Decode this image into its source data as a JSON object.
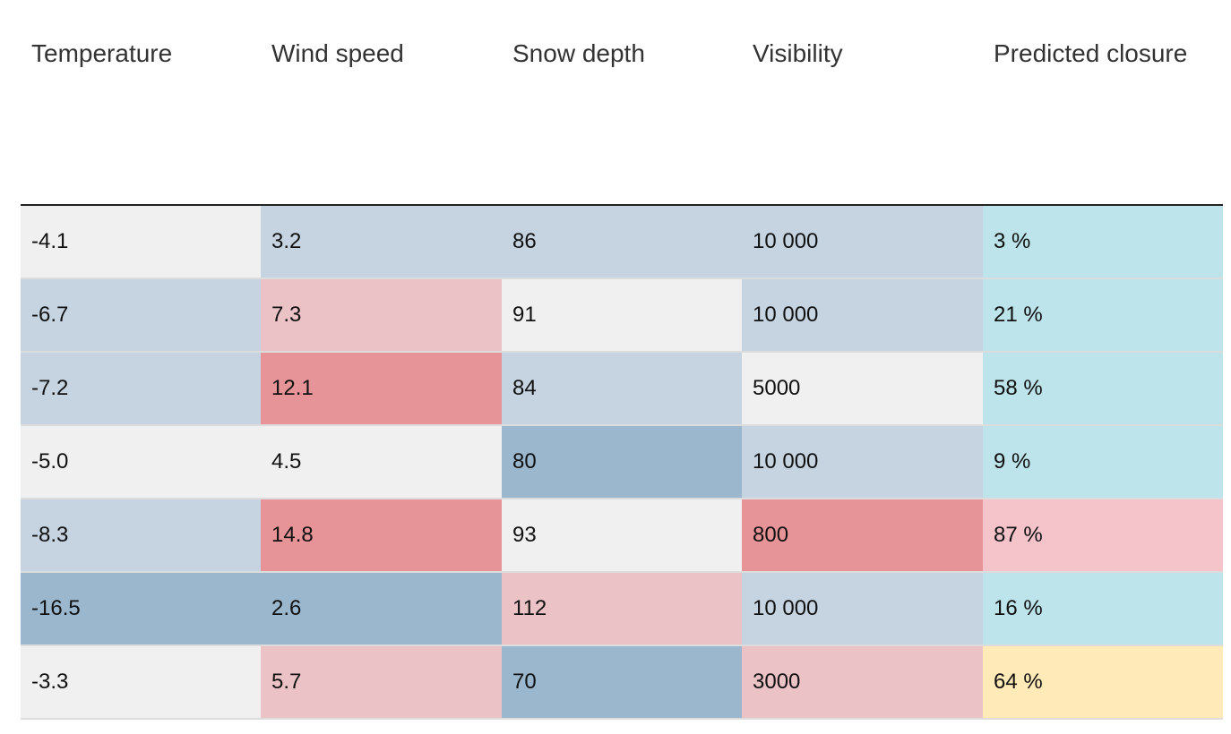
{
  "chart_data": {
    "type": "table",
    "columns": [
      "Temperature",
      "Wind speed",
      "Snow depth",
      "Visibility",
      "Predicted closure"
    ],
    "rows": [
      [
        "-4.1",
        "3.2",
        "86",
        "10 000",
        "3 %"
      ],
      [
        "-6.7",
        "7.3",
        "91",
        "10 000",
        "21 %"
      ],
      [
        "-7.2",
        "12.1",
        "84",
        "5000",
        "58 %"
      ],
      [
        "-5.0",
        "4.5",
        "80",
        "10 000",
        "9 %"
      ],
      [
        "-8.3",
        "14.8",
        "93",
        "800",
        "87 %"
      ],
      [
        "-16.5",
        "2.6",
        "112",
        "10 000",
        "16 %"
      ],
      [
        "-3.3",
        "5.7",
        "70",
        "3000",
        "64 %"
      ]
    ],
    "cell_colors": [
      [
        "#f0f0f0",
        "#c6d4e1",
        "#c6d4e1",
        "#c6d4e1",
        "#bce4ea"
      ],
      [
        "#c6d4e1",
        "#ebc2c6",
        "#f0f0f0",
        "#c6d4e1",
        "#bce4ea"
      ],
      [
        "#c6d4e1",
        "#e69498",
        "#c6d4e1",
        "#f0f0f0",
        "#bce4ea"
      ],
      [
        "#f0f0f0",
        "#f0f0f0",
        "#9ab7cd",
        "#c6d4e1",
        "#bce4ea"
      ],
      [
        "#c6d4e1",
        "#e69498",
        "#f0f0f0",
        "#e69498",
        "#f5c4cb"
      ],
      [
        "#9ab7cd",
        "#9ab7cd",
        "#ebc2c6",
        "#c6d4e1",
        "#bce4ea"
      ],
      [
        "#f0f0f0",
        "#ebc2c6",
        "#9ab7cd",
        "#ebc2c6",
        "#ffeab8"
      ]
    ]
  }
}
